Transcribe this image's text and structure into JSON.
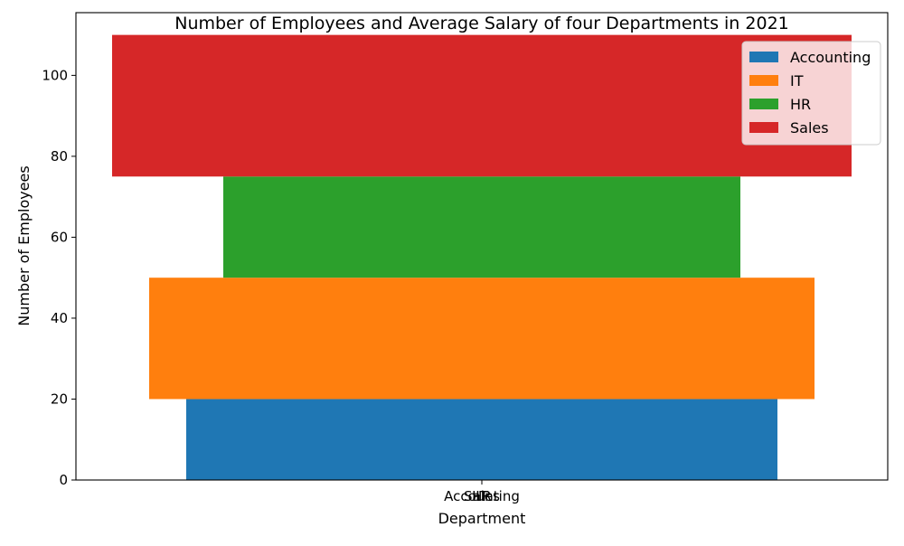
{
  "chart_data": {
    "type": "bar",
    "stacked": true,
    "title": "Number of Employees and Average Salary of four Departments in 2021",
    "xlabel": "Department",
    "ylabel": "Number of Employees",
    "categories": [
      "Accounting",
      "IT",
      "HR",
      "Sales"
    ],
    "series": [
      {
        "name": "Accounting",
        "value": 20,
        "bottom": 0,
        "color": "#1f77b4"
      },
      {
        "name": "IT",
        "value": 30,
        "bottom": 20,
        "color": "#ff7f0e"
      },
      {
        "name": "HR",
        "value": 25,
        "bottom": 50,
        "color": "#2ca02c"
      },
      {
        "name": "Sales",
        "value": 35,
        "bottom": 75,
        "color": "#d62728"
      }
    ],
    "ylim": [
      0,
      115.5
    ],
    "yticks": [
      0,
      20,
      40,
      60,
      80,
      100
    ],
    "legend_position": "top-right",
    "grid": false
  }
}
